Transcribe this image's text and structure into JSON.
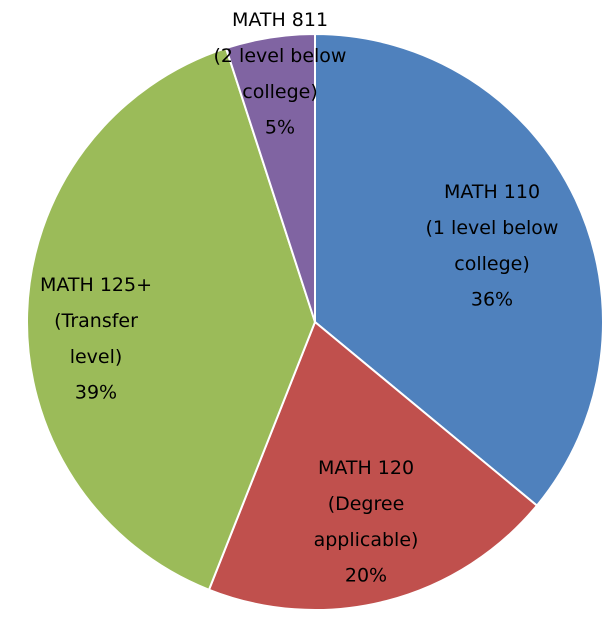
{
  "chart_data": {
    "type": "pie",
    "categories": [
      "MATH 110\n(1 level below\ncollege)",
      "MATH 120\n(Degree\napplicable)",
      "MATH 125+\n(Transfer\nlevel)",
      "MATH 811\n(2 level below\ncollege)"
    ],
    "values": [
      36,
      20,
      39,
      5
    ],
    "value_labels": [
      "36%",
      "20%",
      "39%",
      "5%"
    ],
    "colors": [
      "#4f81bd",
      "#c0504d",
      "#9bbb59",
      "#8064a2"
    ]
  }
}
